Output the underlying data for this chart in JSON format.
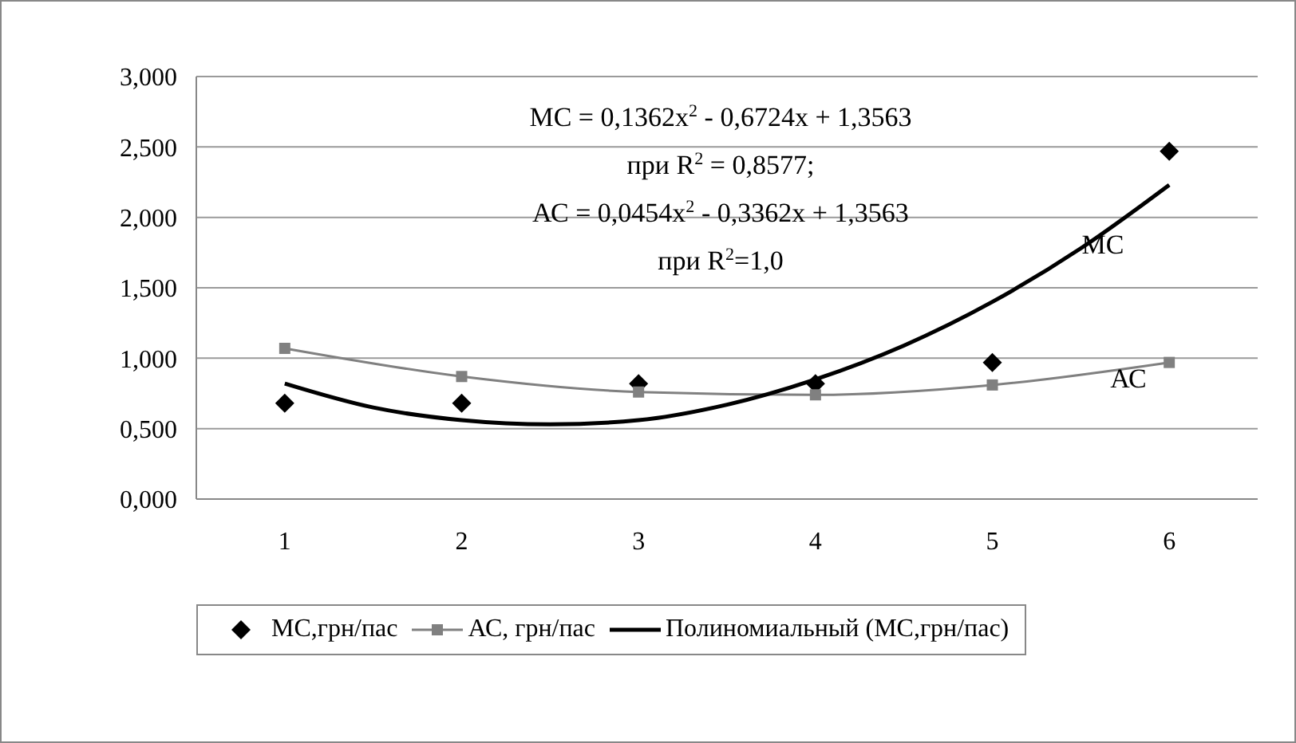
{
  "chart_data": {
    "type": "scatter",
    "xlim": [
      0.5,
      6.5
    ],
    "xticks": [
      1,
      2,
      3,
      4,
      5,
      6
    ],
    "ylim": [
      0,
      3
    ],
    "yticks": [
      {
        "value": 0,
        "label": "0,000"
      },
      {
        "value": 0.5,
        "label": "0,500"
      },
      {
        "value": 1,
        "label": "1,000"
      },
      {
        "value": 1.5,
        "label": "1,500"
      },
      {
        "value": 2,
        "label": "2,000"
      },
      {
        "value": 2.5,
        "label": "2,500"
      },
      {
        "value": 3,
        "label": "3,000"
      }
    ],
    "grid": "y",
    "legend": "bottom",
    "series": [
      {
        "name": "МС,грн/пас",
        "marker": "diamond",
        "color": "#000000",
        "x": [
          1,
          2,
          3,
          4,
          5,
          6
        ],
        "values": [
          0.68,
          0.68,
          0.82,
          0.82,
          0.97,
          2.47
        ]
      },
      {
        "name": "АС, грн/пас",
        "type": "line",
        "marker": "square",
        "color": "#808080",
        "x": [
          1,
          2,
          3,
          4,
          5,
          6
        ],
        "values": [
          1.07,
          0.87,
          0.76,
          0.74,
          0.81,
          0.97
        ]
      },
      {
        "name": "Полиномиальный (МС,грн/пас)",
        "type": "line",
        "marker": "none",
        "color": "#000000",
        "x": [
          1,
          1.5,
          2,
          2.5,
          3,
          3.5,
          4,
          4.5,
          5,
          5.5,
          6
        ],
        "values": [
          0.82,
          0.65,
          0.56,
          0.53,
          0.56,
          0.67,
          0.85,
          1.09,
          1.4,
          1.78,
          2.23
        ]
      }
    ],
    "annotations": [
      "МС = 0,1362x$^{2}$ - 0,6724x + 1,3563",
      "при R$^{2}$ = 0,8577;",
      "АС = 0,0454x$^{2}$ - 0,3362x + 1,3563",
      "при R$^{2}$=1,0",
      "МС",
      "АС"
    ]
  }
}
